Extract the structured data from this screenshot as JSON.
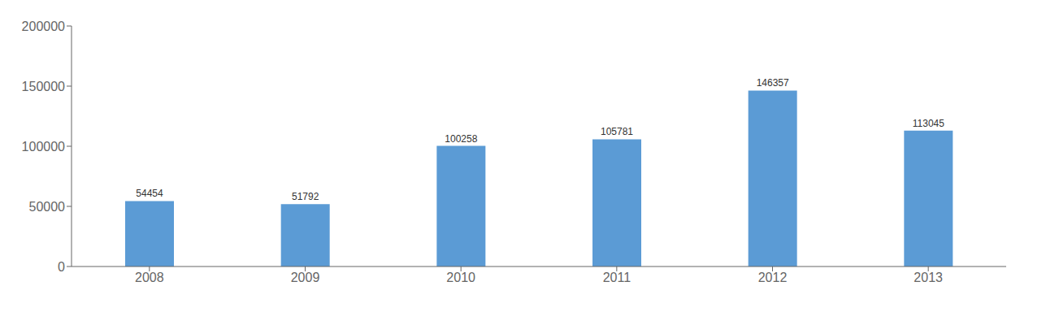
{
  "chart_data": {
    "type": "bar",
    "categories": [
      "2008",
      "2009",
      "2010",
      "2011",
      "2012",
      "2013"
    ],
    "values": [
      54454,
      51792,
      100258,
      105781,
      146357,
      113045
    ],
    "color": "#5b9bd5",
    "ylim": [
      0,
      200000
    ],
    "yticks": [
      0,
      50000,
      100000,
      150000,
      200000
    ],
    "grid": false,
    "data_labels": true
  }
}
